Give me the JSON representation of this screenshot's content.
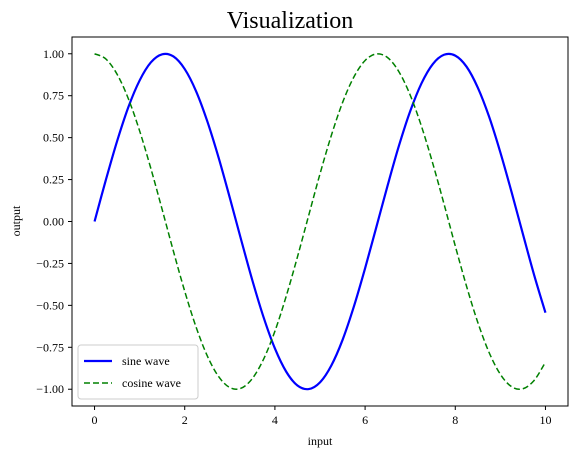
{
  "chart_data": {
    "type": "line",
    "title": "Visualization",
    "xlabel": "input",
    "ylabel": "output",
    "xlim": [
      -0.5,
      10.5
    ],
    "ylim": [
      -1.1,
      1.1
    ],
    "x_ticks": [
      "0",
      "2",
      "4",
      "6",
      "8",
      "10"
    ],
    "x_tick_values": [
      0,
      2,
      4,
      6,
      8,
      10
    ],
    "y_ticks": [
      "1.00",
      "0.75",
      "0.50",
      "0.25",
      "0.00",
      "−0.25",
      "−0.50",
      "−0.75",
      "−1.00"
    ],
    "y_tick_values": [
      1.0,
      0.75,
      0.5,
      0.25,
      0.0,
      -0.25,
      -0.5,
      -0.75,
      -1.0
    ],
    "grid": false,
    "legend_position": "lower-left",
    "series": [
      {
        "name": "sine wave",
        "color": "#0000ff",
        "style": "solid",
        "x": [
          0,
          0.25,
          0.5,
          0.75,
          1,
          1.25,
          1.5,
          1.75,
          2,
          2.25,
          2.5,
          2.75,
          3,
          3.25,
          3.5,
          3.75,
          4,
          4.25,
          4.5,
          4.75,
          5,
          5.25,
          5.5,
          5.75,
          6,
          6.25,
          6.5,
          6.75,
          7,
          7.25,
          7.5,
          7.75,
          8,
          8.25,
          8.5,
          8.75,
          9,
          9.25,
          9.5,
          9.75,
          10
        ],
        "y": [
          0.0,
          0.247,
          0.479,
          0.682,
          0.841,
          0.949,
          0.997,
          0.984,
          0.909,
          0.778,
          0.598,
          0.382,
          0.141,
          -0.108,
          -0.351,
          -0.572,
          -0.757,
          -0.895,
          -0.978,
          -0.999,
          -0.959,
          -0.859,
          -0.706,
          -0.508,
          -0.279,
          -0.033,
          0.215,
          0.451,
          0.657,
          0.823,
          0.938,
          0.994,
          0.989,
          0.923,
          0.798,
          0.625,
          0.412,
          0.174,
          -0.075,
          -0.32,
          -0.544
        ]
      },
      {
        "name": "cosine wave",
        "color": "#008000",
        "style": "dashed",
        "x": [
          0,
          0.25,
          0.5,
          0.75,
          1,
          1.25,
          1.5,
          1.75,
          2,
          2.25,
          2.5,
          2.75,
          3,
          3.25,
          3.5,
          3.75,
          4,
          4.25,
          4.5,
          4.75,
          5,
          5.25,
          5.5,
          5.75,
          6,
          6.25,
          6.5,
          6.75,
          7,
          7.25,
          7.5,
          7.75,
          8,
          8.25,
          8.5,
          8.75,
          9,
          9.25,
          9.5,
          9.75,
          10
        ],
        "y": [
          1.0,
          0.969,
          0.878,
          0.732,
          0.54,
          0.315,
          0.071,
          -0.178,
          -0.416,
          -0.628,
          -0.801,
          -0.924,
          -0.99,
          -0.994,
          -0.936,
          -0.82,
          -0.654,
          -0.446,
          -0.211,
          0.037,
          0.284,
          0.512,
          0.709,
          0.861,
          0.96,
          0.999,
          0.977,
          0.893,
          0.754,
          0.568,
          0.347,
          0.105,
          -0.146,
          -0.386,
          -0.602,
          -0.781,
          -0.911,
          -0.985,
          -0.997,
          -0.947,
          -0.839
        ]
      }
    ]
  }
}
